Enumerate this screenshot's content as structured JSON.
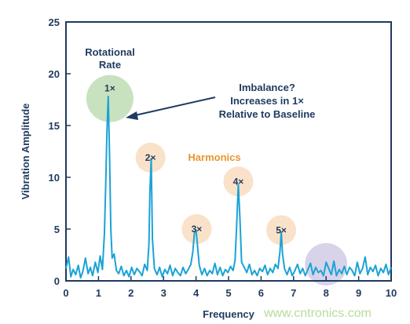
{
  "chart_data": {
    "type": "line",
    "xlabel": "Frequency",
    "ylabel": "Vibration Amplitude",
    "xlim": [
      0,
      10
    ],
    "ylim": [
      0,
      25
    ],
    "x_ticks": [
      "0",
      "1",
      "2",
      "3",
      "4",
      "5",
      "6",
      "7",
      "8",
      "9",
      "10"
    ],
    "y_ticks": [
      "0",
      "5",
      "10",
      "15",
      "20",
      "25"
    ],
    "grid": false,
    "line_color": "#1aa3d6",
    "series": [
      {
        "x": [
          0.0,
          0.08,
          0.15,
          0.22,
          0.3,
          0.38,
          0.45,
          0.52,
          0.6,
          0.68,
          0.75,
          0.82,
          0.9,
          0.98,
          1.05,
          1.12,
          1.18,
          1.22,
          1.26,
          1.3,
          1.34,
          1.38,
          1.42,
          1.48,
          1.55,
          1.62,
          1.7,
          1.78,
          1.86,
          1.94,
          2.02,
          2.1,
          2.18,
          2.26,
          2.34,
          2.42,
          2.5,
          2.55,
          2.58,
          2.62,
          2.66,
          2.72,
          2.8,
          2.88,
          2.96,
          3.04,
          3.12,
          3.2,
          3.28,
          3.36,
          3.44,
          3.52,
          3.6,
          3.68,
          3.76,
          3.84,
          3.9,
          3.95,
          4.0,
          4.05,
          4.1,
          4.18,
          4.26,
          4.34,
          4.42,
          4.5,
          4.58,
          4.66,
          4.74,
          4.82,
          4.9,
          4.98,
          5.06,
          5.14,
          5.2,
          5.25,
          5.3,
          5.35,
          5.4,
          5.48,
          5.56,
          5.64,
          5.72,
          5.8,
          5.88,
          5.96,
          6.04,
          6.12,
          6.2,
          6.28,
          6.36,
          6.44,
          6.52,
          6.58,
          6.62,
          6.66,
          6.72,
          6.8,
          6.88,
          6.96,
          7.04,
          7.12,
          7.2,
          7.28,
          7.36,
          7.44,
          7.52,
          7.6,
          7.68,
          7.76,
          7.84,
          7.92,
          8.0,
          8.08,
          8.16,
          8.24,
          8.32,
          8.4,
          8.48,
          8.56,
          8.64,
          8.72,
          8.8,
          8.88,
          8.96,
          9.04,
          9.12,
          9.2,
          9.28,
          9.36,
          9.44,
          9.52,
          9.6,
          9.68,
          9.76,
          9.84,
          9.92,
          10.0
        ],
        "y": [
          1.2,
          2.3,
          0.4,
          1.1,
          0.6,
          1.5,
          0.3,
          0.9,
          2.2,
          0.7,
          1.3,
          0.5,
          1.8,
          0.8,
          2.4,
          1.1,
          4.5,
          9.0,
          14.5,
          17.8,
          12.0,
          5.0,
          2.2,
          2.6,
          1.0,
          0.7,
          1.4,
          0.5,
          1.0,
          0.4,
          1.3,
          0.6,
          1.2,
          0.9,
          0.5,
          1.6,
          1.0,
          3.5,
          8.5,
          11.8,
          4.0,
          1.2,
          0.6,
          1.3,
          0.4,
          1.1,
          0.7,
          1.5,
          0.5,
          1.2,
          0.8,
          0.5,
          1.3,
          0.7,
          1.1,
          1.6,
          2.8,
          4.6,
          4.9,
          3.2,
          1.5,
          0.6,
          1.2,
          0.5,
          1.0,
          0.7,
          1.7,
          0.6,
          1.3,
          0.5,
          1.1,
          0.8,
          1.4,
          1.0,
          2.0,
          5.5,
          9.3,
          6.0,
          1.8,
          1.3,
          0.8,
          1.6,
          0.6,
          1.0,
          0.5,
          1.2,
          0.9,
          1.5,
          0.6,
          1.2,
          0.8,
          1.6,
          1.2,
          2.8,
          4.7,
          2.6,
          1.2,
          0.6,
          1.3,
          0.5,
          1.0,
          1.6,
          0.7,
          1.2,
          0.5,
          1.1,
          1.7,
          0.6,
          1.3,
          0.8,
          1.0,
          0.5,
          1.8,
          1.2,
          0.6,
          1.9,
          0.5,
          1.1,
          0.7,
          1.4,
          0.6,
          1.3,
          1.0,
          0.5,
          1.8,
          0.7,
          1.2,
          2.3,
          0.6,
          1.3,
          0.9,
          1.5,
          0.5,
          1.2,
          0.8,
          1.6,
          0.6,
          1.3
        ]
      }
    ],
    "annotations": {
      "rotational_rate": [
        "Rotational",
        "Rate"
      ],
      "imbalance": [
        "Imbalance?",
        "Increases in 1×",
        "Relative to Baseline"
      ],
      "harmonics": "Harmonics",
      "peaks": [
        {
          "label": "1×",
          "x": 1.35,
          "y": 17.6,
          "color": "#c8e2bf"
        },
        {
          "label": "2×",
          "x": 2.6,
          "y": 11.9,
          "color": "#f9e2c9"
        },
        {
          "label": "3×",
          "x": 4.02,
          "y": 5.0,
          "color": "#f9e2c9"
        },
        {
          "label": "4×",
          "x": 5.3,
          "y": 9.6,
          "color": "#f9e2c9"
        },
        {
          "label": "5×",
          "x": 6.62,
          "y": 4.9,
          "color": "#f9e2c9"
        },
        {
          "label": "",
          "x": 8.0,
          "y": 1.6,
          "color": "#d9d3ea"
        }
      ]
    }
  },
  "watermark": "www.cntronics.com",
  "colors": {
    "axis": "#1f3a5f",
    "arrow": "#1f3a5f",
    "harmonics_text": "#e8962e"
  }
}
